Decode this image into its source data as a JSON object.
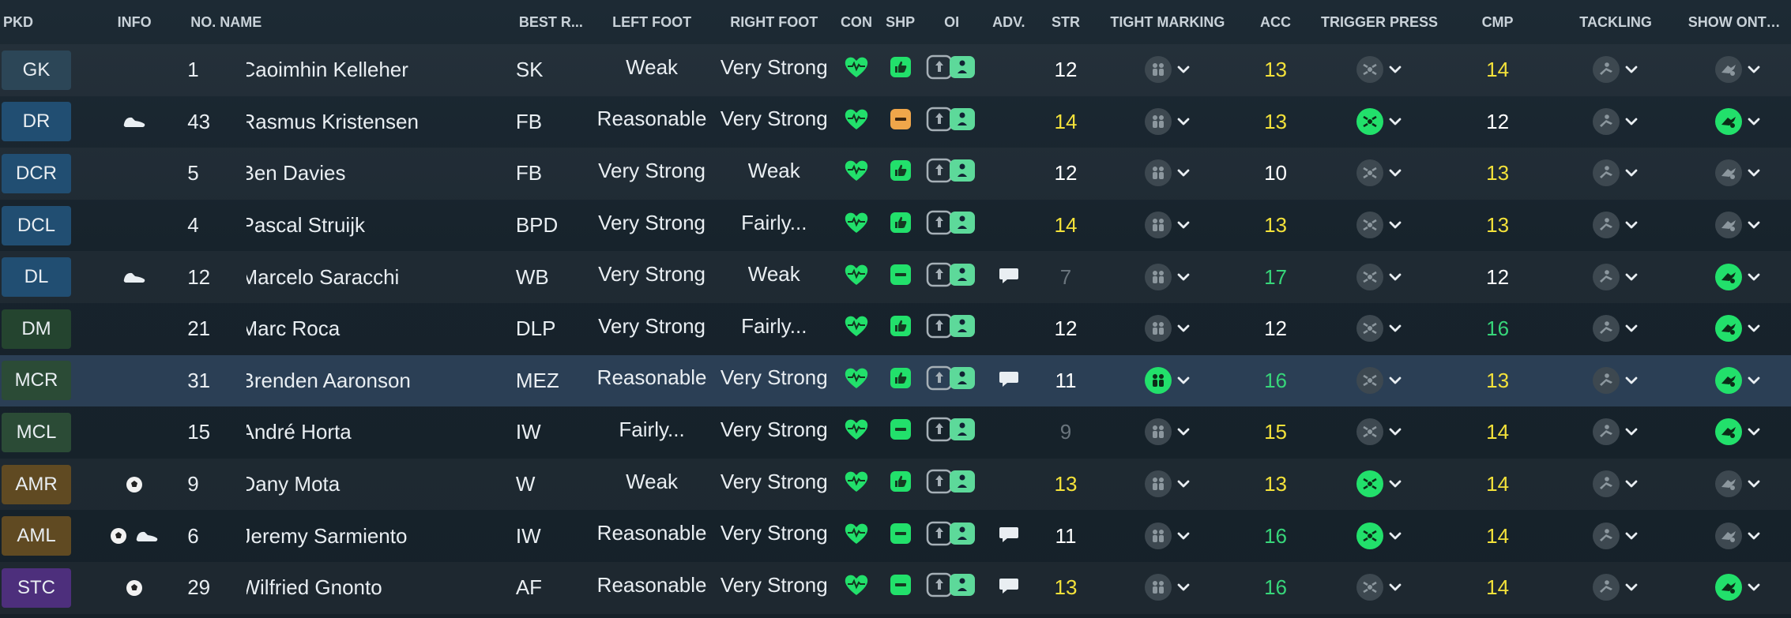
{
  "columns": {
    "pkd": "PKD",
    "info": "INFO",
    "no": "NO.",
    "name": "NAME",
    "best": "BEST R...",
    "left_foot": "LEFT FOOT",
    "right_foot": "RIGHT FOOT",
    "con": "CON",
    "shp": "SHP",
    "oi": "OI",
    "adv": "ADV.",
    "str": "STR",
    "tight_marking": "TIGHT MARKING",
    "acc": "ACC",
    "trigger_press": "TRIGGER PRESS",
    "cmp": "CMP",
    "tackling": "TACKLING",
    "show_onto_foot": "SHOW ONTO FOOT"
  },
  "colors": {
    "attr_white": "#ffffff",
    "attr_yellow": "#f4e23a",
    "attr_green": "#37d67a",
    "attr_grey": "#6a757d",
    "pos_gk": "#2c4657",
    "pos_def": "#214e72",
    "pos_dm": "#24442f",
    "pos_mid": "#2b4b36",
    "pos_am": "#604a22",
    "pos_st": "#4d2f7c",
    "green_icon": "#22e06b",
    "orange_icon": "#f0a64a"
  },
  "players": [
    {
      "pkd": "GK",
      "info": [],
      "no": "1",
      "name": "Caoimhin Kelleher",
      "best": "SK",
      "lf": "Weak",
      "rf": "Very Strong",
      "shp": "thumbs-up",
      "adv": false,
      "str": "12",
      "str_c": "white",
      "tm": false,
      "acc": "13",
      "acc_c": "yellow",
      "tp": false,
      "cmp": "14",
      "cmp_c": "yellow",
      "tk": false,
      "so": false,
      "bg": "pos_gk"
    },
    {
      "pkd": "DR",
      "info": [
        "boot"
      ],
      "no": "43",
      "name": "Rasmus Kristensen",
      "best": "FB",
      "lf": "Reasonable",
      "rf": "Very Strong",
      "shp": "minus-orange",
      "adv": false,
      "str": "14",
      "str_c": "yellow",
      "tm": false,
      "acc": "13",
      "acc_c": "yellow",
      "tp": true,
      "cmp": "12",
      "cmp_c": "white",
      "tk": false,
      "so": true,
      "bg": "pos_def"
    },
    {
      "pkd": "DCR",
      "info": [],
      "no": "5",
      "name": "Ben Davies",
      "best": "FB",
      "lf": "Very Strong",
      "rf": "Weak",
      "shp": "thumbs-up",
      "adv": false,
      "str": "12",
      "str_c": "white",
      "tm": false,
      "acc": "10",
      "acc_c": "white",
      "tp": false,
      "cmp": "13",
      "cmp_c": "yellow",
      "tk": false,
      "so": false,
      "bg": "pos_def"
    },
    {
      "pkd": "DCL",
      "info": [],
      "no": "4",
      "name": "Pascal Struijk",
      "best": "BPD",
      "lf": "Very Strong",
      "rf": "Fairly...",
      "shp": "thumbs-up",
      "adv": false,
      "str": "14",
      "str_c": "yellow",
      "tm": false,
      "acc": "13",
      "acc_c": "yellow",
      "tp": false,
      "cmp": "13",
      "cmp_c": "yellow",
      "tk": false,
      "so": false,
      "bg": "pos_def"
    },
    {
      "pkd": "DL",
      "info": [
        "boot"
      ],
      "no": "12",
      "name": "Marcelo Saracchi",
      "best": "WB",
      "lf": "Very Strong",
      "rf": "Weak",
      "shp": "minus-green",
      "adv": true,
      "str": "7",
      "str_c": "grey",
      "tm": false,
      "acc": "17",
      "acc_c": "green",
      "tp": false,
      "cmp": "12",
      "cmp_c": "white",
      "tk": false,
      "so": true,
      "bg": "pos_def"
    },
    {
      "pkd": "DM",
      "info": [],
      "no": "21",
      "name": "Marc Roca",
      "best": "DLP",
      "lf": "Very Strong",
      "rf": "Fairly...",
      "shp": "thumbs-up",
      "adv": false,
      "str": "12",
      "str_c": "white",
      "tm": false,
      "acc": "12",
      "acc_c": "white",
      "tp": false,
      "cmp": "16",
      "cmp_c": "green",
      "tk": false,
      "so": true,
      "bg": "pos_dm"
    },
    {
      "pkd": "MCR",
      "info": [],
      "no": "31",
      "name": "Brenden Aaronson",
      "best": "MEZ",
      "lf": "Reasonable",
      "rf": "Very Strong",
      "shp": "thumbs-up",
      "adv": true,
      "str": "11",
      "str_c": "white",
      "tm": true,
      "acc": "16",
      "acc_c": "green",
      "tp": false,
      "cmp": "13",
      "cmp_c": "yellow",
      "tk": false,
      "so": true,
      "bg": "pos_mid",
      "selected": true
    },
    {
      "pkd": "MCL",
      "info": [],
      "no": "15",
      "name": "André Horta",
      "best": "IW",
      "lf": "Fairly...",
      "rf": "Very Strong",
      "shp": "minus-green",
      "adv": false,
      "str": "9",
      "str_c": "grey",
      "tm": false,
      "acc": "15",
      "acc_c": "yellow",
      "tp": false,
      "cmp": "14",
      "cmp_c": "yellow",
      "tk": false,
      "so": true,
      "bg": "pos_mid"
    },
    {
      "pkd": "AMR",
      "info": [
        "ball"
      ],
      "no": "9",
      "name": "Dany Mota",
      "best": "W",
      "lf": "Weak",
      "rf": "Very Strong",
      "shp": "thumbs-up",
      "adv": false,
      "str": "13",
      "str_c": "yellow",
      "tm": false,
      "acc": "13",
      "acc_c": "yellow",
      "tp": true,
      "cmp": "14",
      "cmp_c": "yellow",
      "tk": false,
      "so": false,
      "bg": "pos_am"
    },
    {
      "pkd": "AML",
      "info": [
        "ball",
        "boot"
      ],
      "no": "6",
      "name": "Jeremy Sarmiento",
      "best": "IW",
      "lf": "Reasonable",
      "rf": "Very Strong",
      "shp": "minus-green",
      "adv": true,
      "str": "11",
      "str_c": "white",
      "tm": false,
      "acc": "16",
      "acc_c": "green",
      "tp": true,
      "cmp": "14",
      "cmp_c": "yellow",
      "tk": false,
      "so": false,
      "bg": "pos_am"
    },
    {
      "pkd": "STC",
      "info": [
        "ball"
      ],
      "no": "29",
      "name": "Wilfried Gnonto",
      "best": "AF",
      "lf": "Reasonable",
      "rf": "Very Strong",
      "shp": "minus-green",
      "adv": true,
      "str": "13",
      "str_c": "yellow",
      "tm": false,
      "acc": "16",
      "acc_c": "green",
      "tp": false,
      "cmp": "14",
      "cmp_c": "yellow",
      "tk": false,
      "so": true,
      "bg": "pos_st"
    }
  ]
}
